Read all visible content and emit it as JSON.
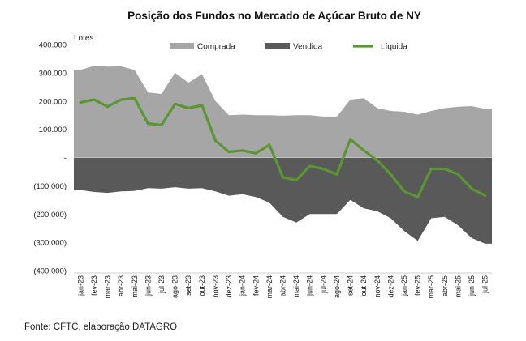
{
  "chart_data": {
    "type": "area",
    "title": "Posição dos Fundos no Mercado de Açúcar Bruto de NY",
    "ylabel": "Lotes",
    "xlabel": "",
    "ylim": [
      -400000,
      400000
    ],
    "yticks": [
      400000,
      300000,
      200000,
      100000,
      0,
      -100000,
      -200000,
      -300000,
      -400000
    ],
    "ytick_labels": [
      "400.000",
      "300.000",
      "200.000",
      "100.000",
      "-",
      "(100.000)",
      "(200.000)",
      "(300.000)",
      "(400.000)"
    ],
    "categories": [
      "jan-23",
      "fev-23",
      "mar-23",
      "abr-23",
      "mai-23",
      "jun-23",
      "jul-23",
      "ago-23",
      "set-23",
      "out-23",
      "nov-23",
      "dez-23",
      "jan-24",
      "fev-24",
      "mar-24",
      "abr-24",
      "mai-24",
      "jun-24",
      "jul-24",
      "ago-24",
      "set-24",
      "out-24",
      "nov-24",
      "dez-24",
      "jan-25",
      "fev-25",
      "mar-25",
      "abr-25",
      "mai-25",
      "jun-25",
      "jul-25"
    ],
    "legend": {
      "placement": "top",
      "entries": [
        "Comprada",
        "Vendida",
        "Líquida"
      ]
    },
    "grid": false,
    "colors": {
      "Comprada": "#a6a6a6",
      "Vendida": "#595959",
      "Líquida": "#5a9632"
    },
    "series": [
      {
        "name": "Comprada",
        "type": "area",
        "values": [
          310000,
          325000,
          322000,
          323000,
          310000,
          230000,
          225000,
          300000,
          265000,
          295000,
          200000,
          150000,
          152000,
          150000,
          150000,
          148000,
          150000,
          150000,
          145000,
          145000,
          205000,
          210000,
          175000,
          165000,
          162000,
          152000,
          165000,
          175000,
          180000,
          182000,
          172000
        ]
      },
      {
        "name": "Vendida",
        "type": "area",
        "values": [
          -115000,
          -122000,
          -125000,
          -120000,
          -118000,
          -108000,
          -110000,
          -105000,
          -110000,
          -108000,
          -120000,
          -135000,
          -130000,
          -140000,
          -160000,
          -210000,
          -230000,
          -200000,
          -200000,
          -200000,
          -150000,
          -180000,
          -190000,
          -215000,
          -260000,
          -295000,
          -215000,
          -210000,
          -240000,
          -285000,
          -305000
        ]
      },
      {
        "name": "Líquida",
        "type": "line",
        "values": [
          195000,
          205000,
          180000,
          205000,
          210000,
          120000,
          115000,
          190000,
          175000,
          185000,
          60000,
          20000,
          25000,
          15000,
          45000,
          -70000,
          -80000,
          -30000,
          -40000,
          -60000,
          65000,
          25000,
          -10000,
          -60000,
          -120000,
          -140000,
          -40000,
          -40000,
          -60000,
          -110000,
          -135000
        ]
      }
    ]
  },
  "footer": {
    "source": "Fonte:  CFTC, elaboração DATAGRO"
  }
}
